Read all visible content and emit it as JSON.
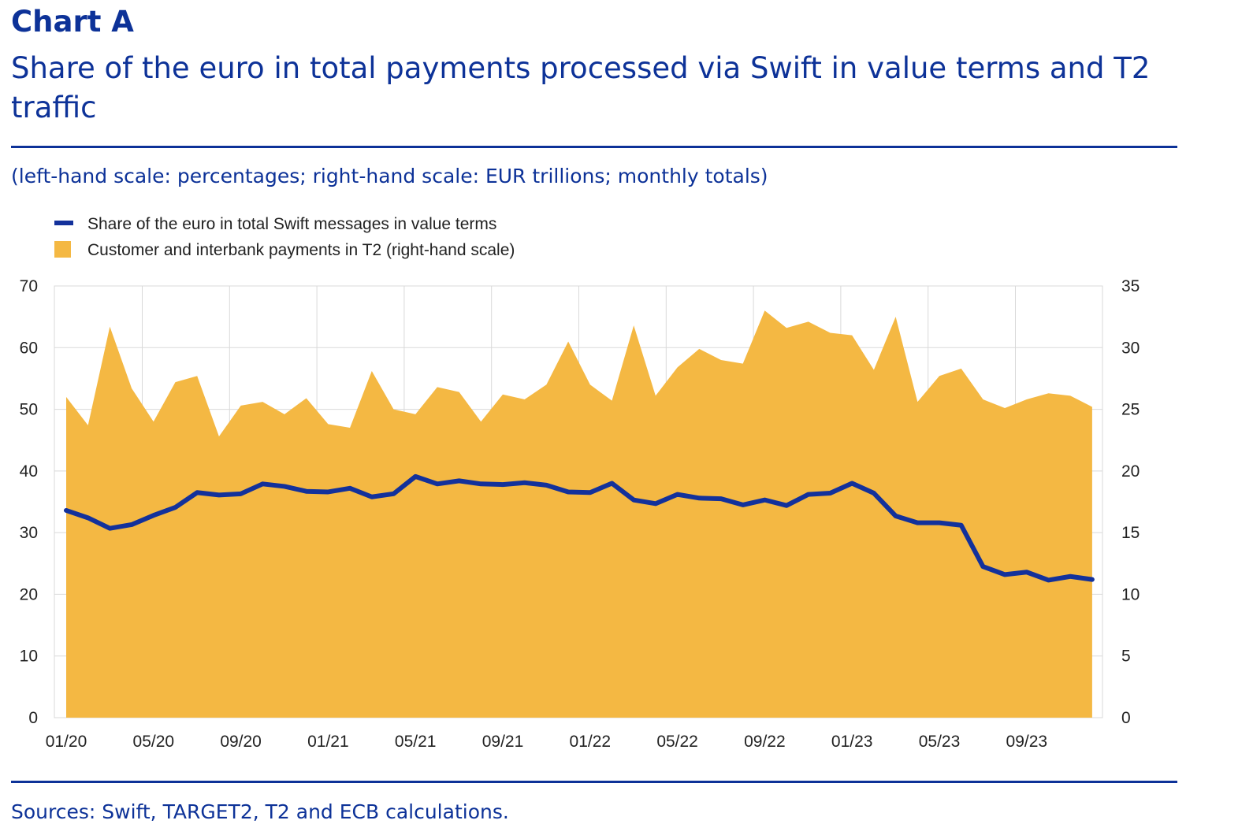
{
  "header": {
    "label": "Chart A",
    "title": "Share of the euro in total payments processed via Swift in value terms and T2 traffic",
    "subtitle": "(left-hand scale: percentages; right-hand scale: EUR trillions; monthly totals)",
    "sources": "Sources: Swift, TARGET2, T2 and ECB calculations."
  },
  "colors": {
    "line": "#13319b",
    "area": "#f4b843",
    "text": "#0d3298"
  },
  "chart_data": {
    "type": "line+area",
    "title": "Share of the euro in total payments processed via Swift in value terms and T2 traffic",
    "legend": [
      "Share of the euro in total Swift messages in value terms",
      "Customer and interbank payments in T2 (right-hand scale)"
    ],
    "legend_position": "top-left",
    "x_ticks": [
      "01/20",
      "05/20",
      "09/20",
      "01/21",
      "05/21",
      "09/21",
      "01/22",
      "05/22",
      "09/22",
      "01/23",
      "05/23",
      "09/23"
    ],
    "y_left": {
      "range": [
        0,
        70
      ],
      "ticks": [
        "0",
        "10",
        "20",
        "30",
        "40",
        "50",
        "60",
        "70"
      ]
    },
    "y_right": {
      "range": [
        0,
        35
      ],
      "ticks": [
        "0",
        "5",
        "10",
        "15",
        "20",
        "25",
        "30",
        "35"
      ]
    },
    "grid": true,
    "series": [
      {
        "name": "Customer and interbank payments in T2 (right-hand scale)",
        "type": "area",
        "axis": "right",
        "values": [
          26.0,
          23.7,
          31.7,
          26.7,
          24.0,
          27.2,
          27.7,
          22.8,
          25.3,
          25.6,
          24.6,
          25.9,
          23.8,
          23.5,
          28.1,
          25.0,
          24.6,
          26.8,
          26.4,
          24.0,
          26.2,
          25.8,
          27.0,
          30.5,
          27.0,
          25.7,
          31.8,
          26.1,
          28.4,
          29.9,
          29.0,
          28.7,
          33.0,
          31.6,
          32.1,
          31.2,
          31.0,
          28.2,
          32.5,
          25.6,
          27.7,
          28.3,
          25.8,
          25.1,
          25.8,
          26.3,
          26.1,
          25.2
        ]
      },
      {
        "name": "Share of the euro in total Swift messages in value terms",
        "type": "line",
        "axis": "left",
        "values": [
          33.6,
          32.4,
          30.7,
          31.3,
          32.8,
          34.1,
          36.5,
          36.1,
          36.3,
          37.9,
          37.5,
          36.7,
          36.6,
          37.2,
          35.8,
          36.3,
          39.1,
          37.9,
          38.4,
          37.9,
          37.8,
          38.1,
          37.7,
          36.6,
          36.5,
          38.0,
          35.3,
          34.7,
          36.2,
          35.6,
          35.5,
          34.5,
          35.3,
          34.4,
          36.2,
          36.4,
          38.0,
          36.4,
          32.7,
          31.6,
          31.6,
          31.2,
          24.5,
          23.2,
          23.6,
          22.3,
          22.9,
          22.4
        ]
      }
    ]
  }
}
